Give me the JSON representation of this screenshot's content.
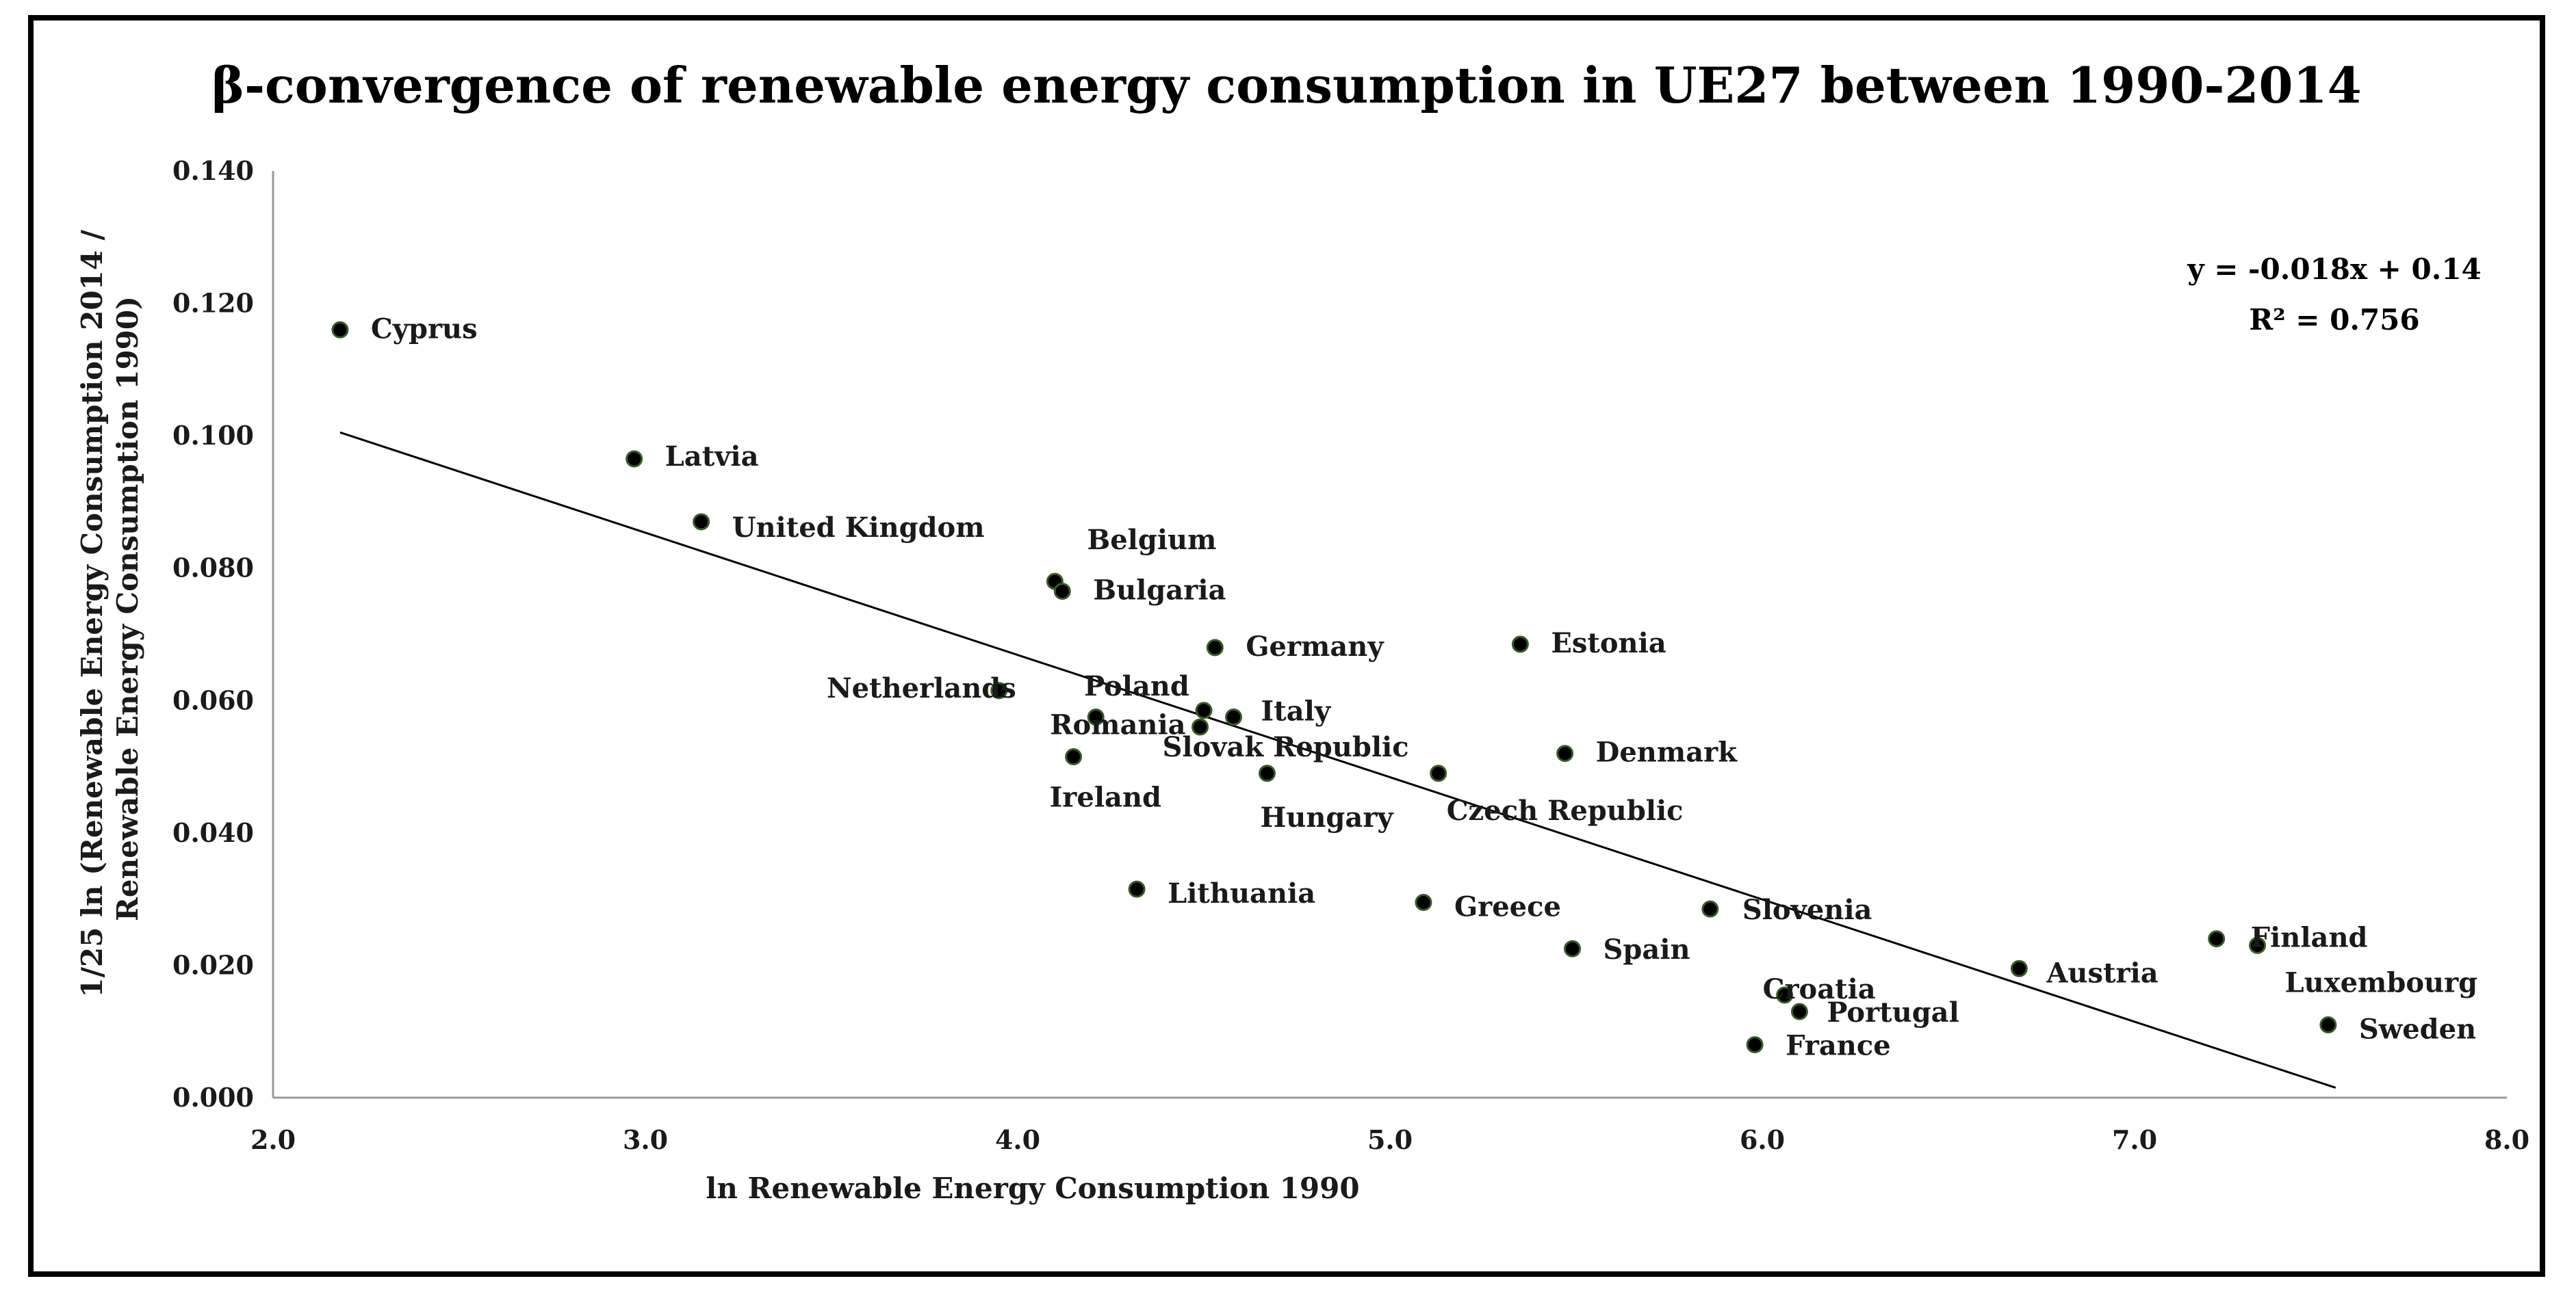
{
  "chart_data": {
    "type": "scatter",
    "title": "β-convergence of renewable energy consumption in UE27 between 1990-2014",
    "xlabel": "ln Renewable Energy Consumption 1990",
    "ylabel_lines": [
      "1/25 ln (Renewable Energy Consumption 2014 /",
      "Renewable Energy Consumption 1990)"
    ],
    "xlim": [
      2.0,
      8.0
    ],
    "ylim": [
      0.0,
      0.14
    ],
    "x_ticks": [
      "2.0",
      "3.0",
      "4.0",
      "5.0",
      "6.0",
      "7.0",
      "8.0"
    ],
    "y_ticks": [
      "0.000",
      "0.020",
      "0.040",
      "0.060",
      "0.080",
      "0.100",
      "0.120",
      "0.140"
    ],
    "grid": false,
    "trendline": {
      "equation": "y = -0.018x + 0.14",
      "r_squared": "R² = 0.756",
      "x_start": 2.18,
      "y_start": 0.1005,
      "x_end": 7.54,
      "y_end": 0.0015
    },
    "points": [
      {
        "name": "Cyprus",
        "x": 2.18,
        "y": 0.116
      },
      {
        "name": "Latvia",
        "x": 2.97,
        "y": 0.0965
      },
      {
        "name": "United Kingdom",
        "x": 3.15,
        "y": 0.087
      },
      {
        "name": "Belgium",
        "x": 4.1,
        "y": 0.078
      },
      {
        "name": "Bulgaria",
        "x": 4.12,
        "y": 0.0765
      },
      {
        "name": "Germany",
        "x": 4.53,
        "y": 0.068
      },
      {
        "name": "Estonia",
        "x": 5.35,
        "y": 0.0685
      },
      {
        "name": "Netherlands",
        "x": 3.95,
        "y": 0.0615
      },
      {
        "name": "Poland",
        "x": 4.5,
        "y": 0.0585
      },
      {
        "name": "Italy",
        "x": 4.58,
        "y": 0.0575
      },
      {
        "name": "Romania",
        "x": 4.21,
        "y": 0.0575
      },
      {
        "name": "Slovak Republic",
        "x": 4.49,
        "y": 0.056
      },
      {
        "name": "Ireland",
        "x": 4.15,
        "y": 0.0515
      },
      {
        "name": "Denmark",
        "x": 5.47,
        "y": 0.052
      },
      {
        "name": "Hungary",
        "x": 4.67,
        "y": 0.049
      },
      {
        "name": "Czech Republic",
        "x": 5.13,
        "y": 0.049
      },
      {
        "name": "Lithuania",
        "x": 4.32,
        "y": 0.0315
      },
      {
        "name": "Greece",
        "x": 5.09,
        "y": 0.0295
      },
      {
        "name": "Slovenia",
        "x": 5.86,
        "y": 0.0285
      },
      {
        "name": "Spain",
        "x": 5.49,
        "y": 0.0225
      },
      {
        "name": "Austria",
        "x": 6.69,
        "y": 0.0195
      },
      {
        "name": "Finland",
        "x": 7.22,
        "y": 0.024
      },
      {
        "name": "Luxembourg",
        "x": 7.33,
        "y": 0.023
      },
      {
        "name": "Croatia",
        "x": 6.06,
        "y": 0.0155
      },
      {
        "name": "Portugal",
        "x": 6.1,
        "y": 0.013
      },
      {
        "name": "France",
        "x": 5.98,
        "y": 0.008
      },
      {
        "name": "Sweden",
        "x": 7.52,
        "y": 0.011
      }
    ]
  }
}
